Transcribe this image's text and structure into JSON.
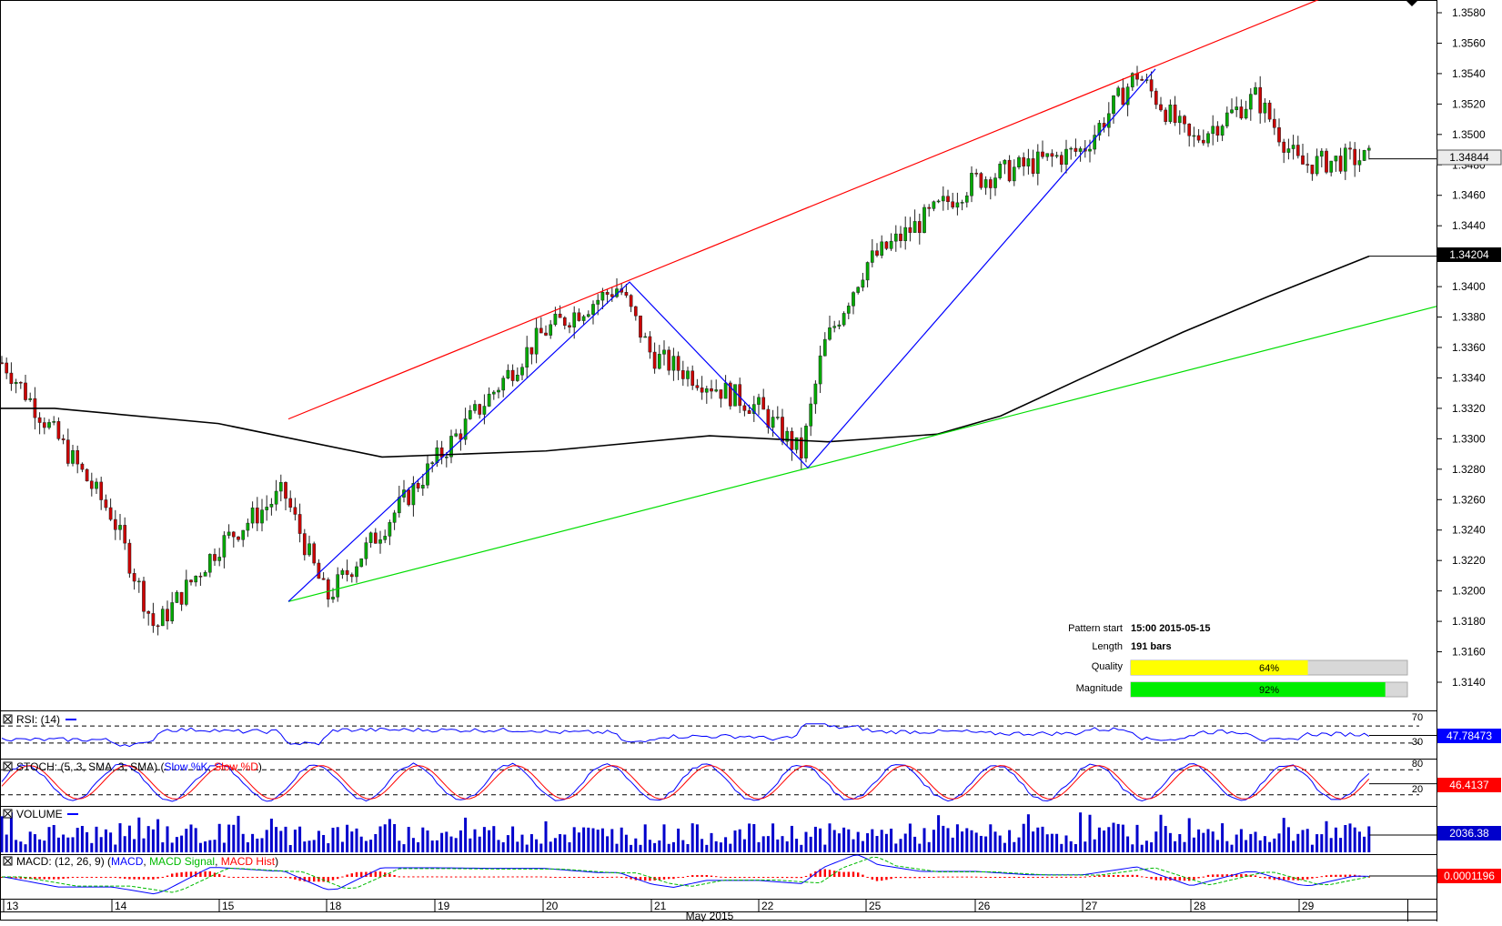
{
  "chart_data": {
    "type": "candlestick",
    "instrument_price": {
      "last_price_label": "1.34844",
      "sma_label": "1.34204",
      "y_ticks": [
        "1.3580",
        "1.3560",
        "1.3540",
        "1.3520",
        "1.3500",
        "1.3480",
        "1.3460",
        "1.3440",
        "1.3420",
        "1.3400",
        "1.3380",
        "1.3360",
        "1.3340",
        "1.3320",
        "1.3300",
        "1.3280",
        "1.3260",
        "1.3240",
        "1.3220",
        "1.3200",
        "1.3180",
        "1.3160",
        "1.3140"
      ],
      "ylim": [
        1.3125,
        1.3587
      ],
      "approx_closes": [
        {
          "x": "13",
          "y": 1.335
        },
        {
          "x": "14",
          "y": 1.325
        },
        {
          "x": "14.4",
          "y": 1.3175
        },
        {
          "x": "15",
          "y": 1.323
        },
        {
          "x": "15.6",
          "y": 1.3265
        },
        {
          "x": "18",
          "y": 1.3195
        },
        {
          "x": "19",
          "y": 1.3285
        },
        {
          "x": "20",
          "y": 1.337
        },
        {
          "x": "20.7",
          "y": 1.34
        },
        {
          "x": "21",
          "y": 1.3355
        },
        {
          "x": "22",
          "y": 1.332
        },
        {
          "x": "22.4",
          "y": 1.329
        },
        {
          "x": "22.6",
          "y": 1.336
        },
        {
          "x": "25",
          "y": 1.3415
        },
        {
          "x": "26",
          "y": 1.347
        },
        {
          "x": "27",
          "y": 1.349
        },
        {
          "x": "27.5",
          "y": 1.354
        },
        {
          "x": "28",
          "y": 1.3495
        },
        {
          "x": "28.6",
          "y": 1.3525
        },
        {
          "x": "29",
          "y": 1.348
        },
        {
          "x": "29.5",
          "y": 1.3484
        }
      ]
    },
    "pattern_info": {
      "rows": [
        {
          "label": "Pattern start",
          "value": "15:00 2015-05-15"
        },
        {
          "label": "Length",
          "value": "191 bars"
        }
      ],
      "quality": {
        "label": "Quality",
        "percent": 64,
        "text": "64%",
        "color": "#ffff00"
      },
      "magnitude": {
        "label": "Magnitude",
        "percent": 92,
        "text": "92%",
        "color": "#00ee00"
      }
    },
    "rsi": {
      "title": "RSI: (14)",
      "level_high": "70",
      "level_low": "30",
      "value_label": "47.78473"
    },
    "stoch": {
      "title_prefix": "STOCH: (5, 3, SMA, 3, SMA)",
      "series": [
        {
          "name": "Slow %K",
          "color": "#0000ff"
        },
        {
          "name": "Slow %D",
          "color": "#ff0000"
        }
      ],
      "level_high": "80",
      "level_low": "20",
      "value_label": "46.4137"
    },
    "volume": {
      "title": "VOLUME",
      "value_label": "2036.38"
    },
    "macd": {
      "title_prefix": "MACD: (12, 26, 9)",
      "series": [
        {
          "name": "MACD",
          "color": "#0000ff"
        },
        {
          "name": "MACD Signal",
          "color": "#00bb00"
        },
        {
          "name": "MACD Hist",
          "color": "#ff0000"
        }
      ],
      "value_label": "0.0001196"
    },
    "x_axis": {
      "day_labels": [
        "13",
        "14",
        "15",
        "18",
        "19",
        "20",
        "21",
        "22",
        "25",
        "26",
        "27",
        "28",
        "29"
      ],
      "month_label": "May 2015"
    },
    "colors": {
      "upper_trendline": "#ff0000",
      "lower_trendline": "#00dd00",
      "zigzag": "#0000ff",
      "moving_average": "#000000",
      "candle_up": "#00aa00",
      "candle_down": "#cc0000",
      "volume_bars": "#0000cc"
    }
  }
}
